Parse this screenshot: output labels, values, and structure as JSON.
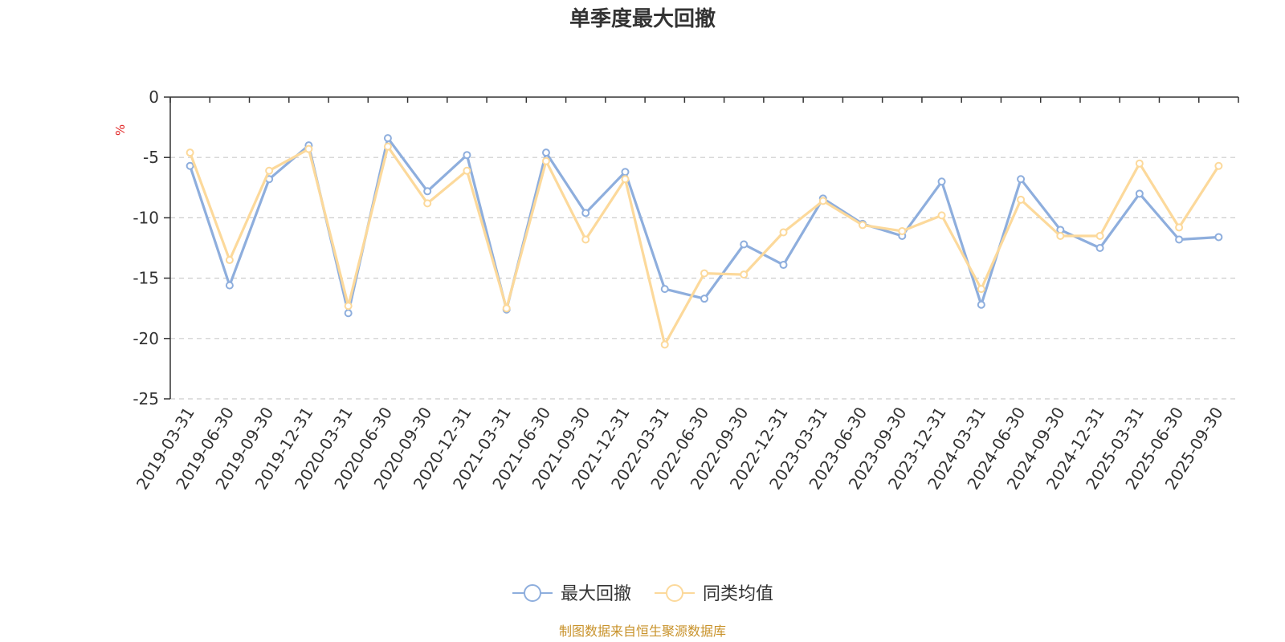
{
  "chart_data": {
    "type": "line",
    "title": "单季度最大回撤",
    "ylabel": "%",
    "ylim": [
      -25,
      0
    ],
    "yticks": [
      0,
      -5,
      -10,
      -15,
      -20,
      -25
    ],
    "grid": true,
    "legend_position": "bottom",
    "categories": [
      "2019-03-31",
      "2019-06-30",
      "2019-09-30",
      "2019-12-31",
      "2020-03-31",
      "2020-06-30",
      "2020-09-30",
      "2020-12-31",
      "2021-03-31",
      "2021-06-30",
      "2021-09-30",
      "2021-12-31",
      "2022-03-31",
      "2022-06-30",
      "2022-09-30",
      "2022-12-31",
      "2023-03-31",
      "2023-06-30",
      "2023-09-30",
      "2023-12-31",
      "2024-03-31",
      "2024-06-30",
      "2024-09-30",
      "2024-12-31",
      "2025-03-31",
      "2025-06-30",
      "2025-09-30"
    ],
    "series": [
      {
        "name": "最大回撤",
        "color": "#8eaedd",
        "values": [
          -5.7,
          -15.6,
          -6.8,
          -4.0,
          -17.9,
          -3.4,
          -7.8,
          -4.8,
          -17.6,
          -4.6,
          -9.6,
          -6.2,
          -15.9,
          -16.7,
          -12.2,
          -13.9,
          -8.4,
          -10.5,
          -11.5,
          -7.0,
          -17.2,
          -6.8,
          -11.0,
          -12.5,
          -8.0,
          -11.8,
          -11.6
        ]
      },
      {
        "name": "同类均值",
        "color": "#fcd99b",
        "values": [
          -4.6,
          -13.5,
          -6.1,
          -4.3,
          -17.3,
          -4.1,
          -8.8,
          -6.1,
          -17.5,
          -5.3,
          -11.8,
          -6.8,
          -20.5,
          -14.6,
          -14.7,
          -11.2,
          -8.6,
          -10.6,
          -11.1,
          -9.8,
          -15.9,
          -8.5,
          -11.5,
          -11.5,
          -5.5,
          -10.8,
          -5.7
        ]
      }
    ]
  },
  "footer": {
    "source": "制图数据来自恒生聚源数据库",
    "source_color": "#c8922a"
  },
  "unit_color": "#e02020"
}
